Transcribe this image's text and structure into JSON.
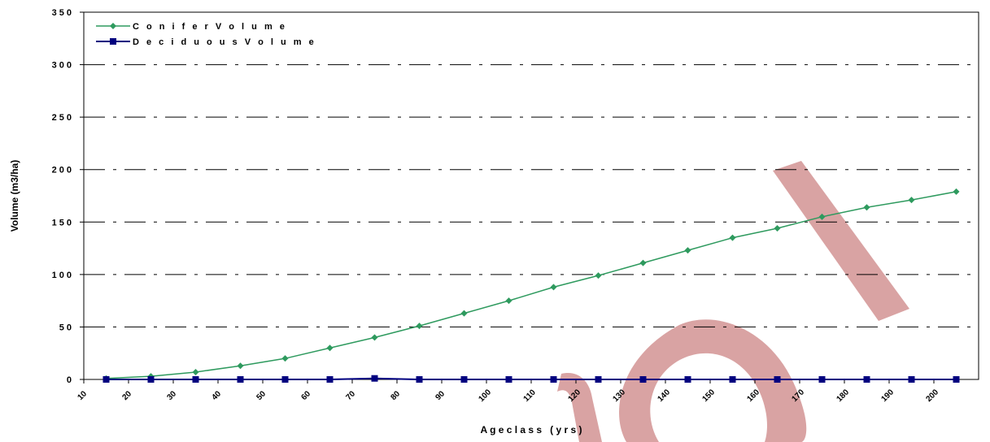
{
  "chart_data": {
    "type": "line",
    "title": "",
    "xlabel": "A g e c l a s s   ( y r s )",
    "ylabel": "Volume (m3/ha)",
    "categories": [
      "10",
      "20",
      "30",
      "40",
      "50",
      "60",
      "70",
      "80",
      "90",
      "100",
      "110",
      "120",
      "130",
      "140",
      "150",
      "160",
      "170",
      "180",
      "190",
      "200"
    ],
    "y_ticks": [
      "0",
      "50",
      "100",
      "150",
      "200",
      "250",
      "300",
      "350"
    ],
    "ylim": [
      0,
      350
    ],
    "grid": true,
    "legend_position": "top-left",
    "series": [
      {
        "name": "C o n i f e r  V o l u m e",
        "color": "#2e9a5e",
        "marker": "diamond",
        "values": [
          1,
          3,
          7,
          13,
          20,
          30,
          40,
          51,
          63,
          75,
          88,
          99,
          111,
          123,
          135,
          144,
          155,
          164,
          171,
          179
        ]
      },
      {
        "name": "D e c i d u o u s  V o l u m e",
        "color": "#00007f",
        "marker": "square",
        "values": [
          0,
          0,
          0,
          0,
          0,
          0,
          1,
          0,
          0,
          0,
          0,
          0,
          0,
          0,
          0,
          0,
          0,
          0,
          0,
          0
        ]
      }
    ]
  }
}
